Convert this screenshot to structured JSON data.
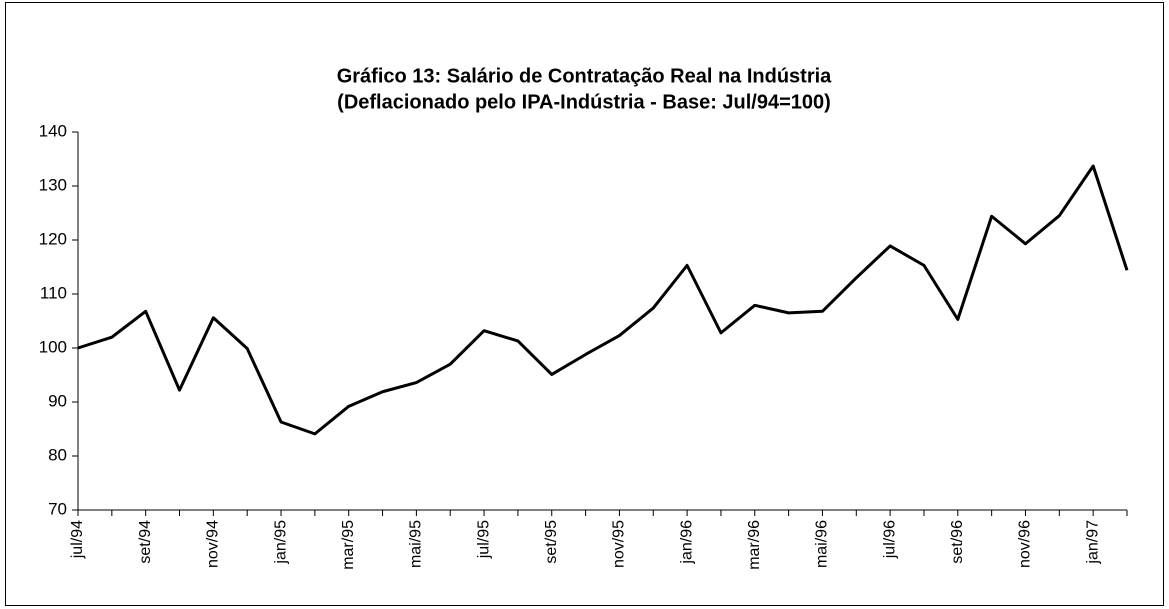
{
  "chart_data": {
    "type": "line",
    "title": "Gráfico 13: Salário de Contratação Real na Indústria",
    "subtitle": "(Deflacionado pelo IPA-Indústria - Base: Jul/94=100)",
    "categories": [
      "jul/94",
      null,
      "set/94",
      null,
      "nov/94",
      null,
      "jan/95",
      null,
      "mar/95",
      null,
      "mai/95",
      null,
      "jul/95",
      null,
      "set/95",
      null,
      "nov/95",
      null,
      "jan/96",
      null,
      "mar/96",
      null,
      "mai/96",
      null,
      "jul/96",
      null,
      "set/96",
      null,
      "nov/96",
      null,
      "jan/97",
      null
    ],
    "series": [
      {
        "color": "#000000",
        "values": [
          100,
          102,
          106.8,
          92.2,
          105.6,
          99.9,
          86.3,
          84.1,
          89.2,
          91.9,
          93.6,
          97,
          103.2,
          101.3,
          95.1,
          98.8,
          102.3,
          107.4,
          115.3,
          102.8,
          107.9,
          106.5,
          106.8,
          113,
          118.9,
          115.3,
          105.3,
          124.4,
          119.3,
          124.5,
          133.7,
          114.4
        ]
      }
    ],
    "ylim": [
      70,
      140
    ],
    "yticks": [
      70,
      80,
      90,
      100,
      110,
      120,
      130,
      140
    ],
    "grid": false
  }
}
